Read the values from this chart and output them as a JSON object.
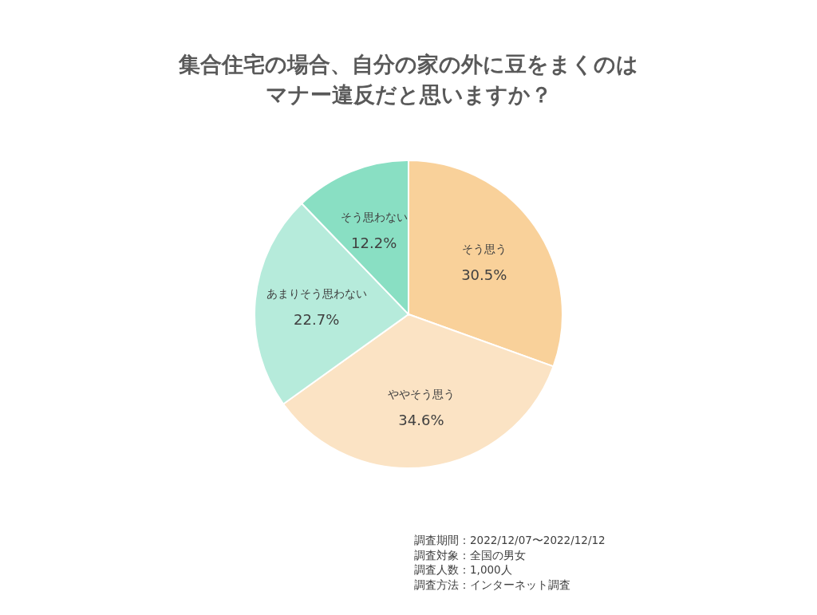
{
  "chart_data": {
    "type": "pie",
    "title": "集合住宅の場合、自分の家の外に豆をまくのはマナー違反だと思いますか？",
    "categories": [
      "そう思う",
      "ややそう思う",
      "あまりそう思わない",
      "そう思わない"
    ],
    "values": [
      30.5,
      34.6,
      22.7,
      12.2
    ],
    "value_labels": [
      "30.5%",
      "34.6%",
      "22.7%",
      "12.2%"
    ],
    "colors": [
      "#f9d19a",
      "#fbe3c4",
      "#b6ebdb",
      "#89dfc3"
    ],
    "annotations": [
      "調査期間：2022/12/07〜2022/12/12",
      "調査対象：全国の男女",
      "調査人数：1,000人",
      "調査方法：インターネット調査"
    ]
  }
}
